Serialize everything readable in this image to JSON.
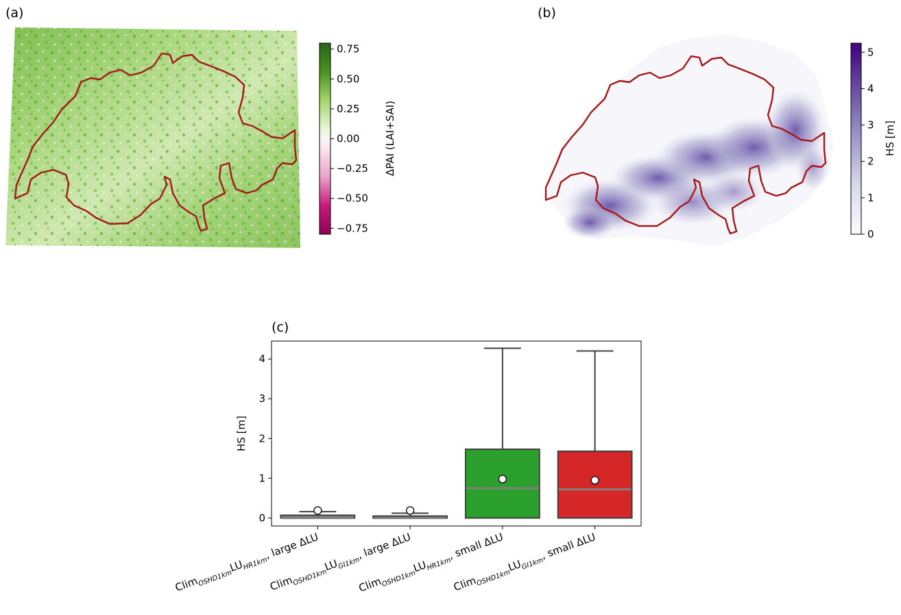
{
  "panels": {
    "a": {
      "label": "(a)",
      "colorbar": {
        "label": "ΔPAI (LAI+SAI)",
        "ticks": [
          "0.75",
          "0.50",
          "0.25",
          "0.00",
          "−0.25",
          "−0.50",
          "−0.75"
        ],
        "tick_values": [
          0.75,
          0.5,
          0.25,
          0.0,
          -0.25,
          -0.5,
          -0.75
        ],
        "range": [
          -0.8,
          0.8
        ],
        "colormap": "PiYG"
      }
    },
    "b": {
      "label": "(b)",
      "colorbar": {
        "label": "HS [m]",
        "ticks": [
          "5",
          "4",
          "3",
          "2",
          "1",
          "0"
        ],
        "tick_values": [
          5,
          4,
          3,
          2,
          1,
          0
        ],
        "range": [
          0,
          5.25
        ],
        "colormap": "Purples"
      }
    },
    "c": {
      "label": "(c)"
    }
  },
  "colors": {
    "border": "#a31818",
    "green": "#2ca02c",
    "red": "#d62728",
    "gray": "#7f7f7f",
    "box_edge": "#3f3f3f"
  },
  "chart_data": {
    "type": "box",
    "ylabel": "HS [m]",
    "ylim": [
      -0.2,
      4.45
    ],
    "yticks": [
      0,
      1,
      2,
      3,
      4
    ],
    "ytick_labels": [
      "0",
      "1",
      "2",
      "3",
      "4"
    ],
    "categories": [
      {
        "clim": "Clim",
        "clim_sub": "OSHD1km",
        "lu": "LU",
        "lu_sub": "HR1km",
        "suffix": ", large ΔLU"
      },
      {
        "clim": "Clim",
        "clim_sub": "OSHD1km",
        "lu": "LU",
        "lu_sub": "GI1km",
        "suffix": ", large ΔLU"
      },
      {
        "clim": "Clim",
        "clim_sub": "OSHD1km",
        "lu": "LU",
        "lu_sub": "HR1km",
        "suffix": ", small ΔLU"
      },
      {
        "clim": "Clim",
        "clim_sub": "OSHD1km",
        "lu": "LU",
        "lu_sub": "GI1km",
        "suffix": ", small ΔLU"
      }
    ],
    "boxes": [
      {
        "q1": 0.0,
        "median": 0.0,
        "q3": 0.07,
        "whisker_low": 0.0,
        "whisker_high": 0.16,
        "mean": 0.19,
        "color": "#7f7f7f"
      },
      {
        "q1": 0.0,
        "median": 0.0,
        "q3": 0.05,
        "whisker_low": 0.0,
        "whisker_high": 0.12,
        "mean": 0.19,
        "color": "#7f7f7f"
      },
      {
        "q1": 0.0,
        "median": 0.75,
        "q3": 1.73,
        "whisker_low": 0.0,
        "whisker_high": 4.27,
        "mean": 0.98,
        "color": "#2ca02c"
      },
      {
        "q1": 0.0,
        "median": 0.72,
        "q3": 1.68,
        "whisker_low": 0.0,
        "whisker_high": 4.2,
        "mean": 0.95,
        "color": "#d62728"
      }
    ]
  }
}
